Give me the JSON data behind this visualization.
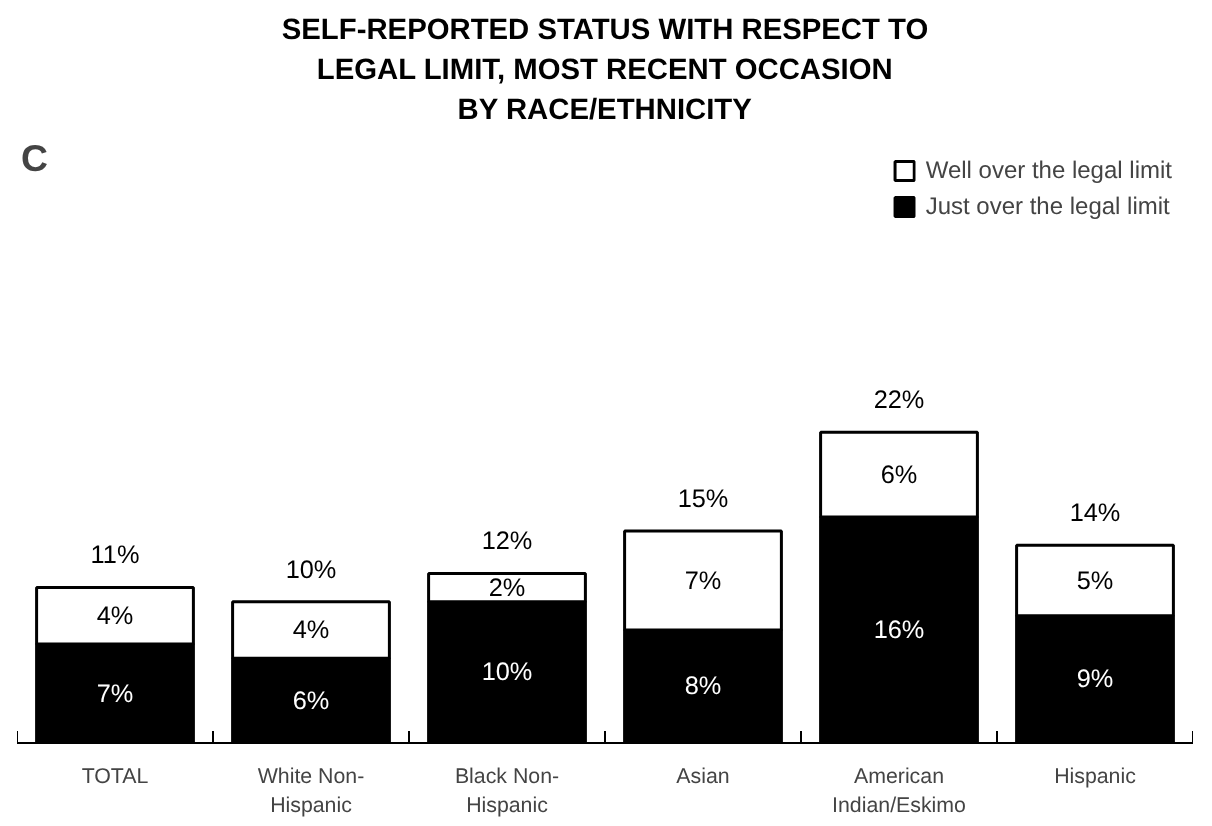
{
  "chart_data": {
    "type": "bar",
    "stacked": true,
    "title": "SELF-REPORTED STATUS WITH RESPECT TO\nLEGAL LIMIT, MOST RECENT OCCASION\nBY RACE/ETHNICITY",
    "annotations": [
      "C"
    ],
    "categories": [
      "TOTAL",
      "White Non-\nHispanic",
      "Black Non-\nHispanic",
      "Asian",
      "American\nIndian/Eskimo",
      "Hispanic"
    ],
    "series": [
      {
        "name": "Just over the legal limit",
        "color": "#000000",
        "values": [
          7,
          6,
          10,
          8,
          16,
          9
        ],
        "value_labels": [
          "7%",
          "6%",
          "10%",
          "8%",
          "16%",
          "9%"
        ]
      },
      {
        "name": "Well over the legal limit",
        "color": "#ffffff",
        "values": [
          4,
          4,
          2,
          7,
          6,
          5
        ],
        "value_labels": [
          "4%",
          "4%",
          "2%",
          "7%",
          "6%",
          "5%"
        ]
      }
    ],
    "totals": [
      "11%",
      "10%",
      "12%",
      "15%",
      "22%",
      "14%"
    ],
    "legend": "top right",
    "grid": false
  }
}
